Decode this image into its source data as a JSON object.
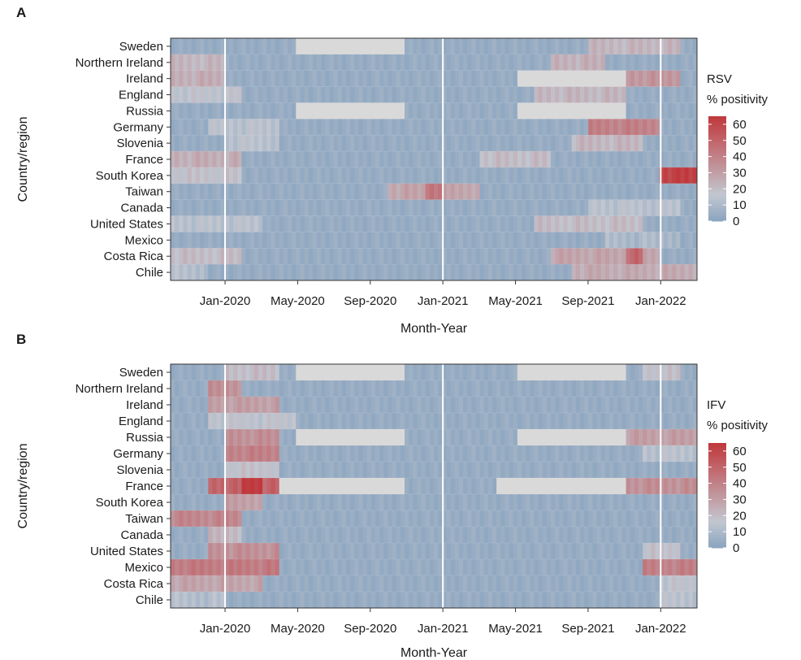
{
  "panels": [
    {
      "letter": "A",
      "legend_title": [
        "RSV",
        "% positivity"
      ]
    },
    {
      "letter": "B",
      "legend_title": [
        "IFV",
        "% positivity"
      ]
    }
  ],
  "colors": {
    "low": "#8aa4bf",
    "mid": "#c2c7d0",
    "high": "#c0383c",
    "na": "#d9d9d9",
    "divider": "#ffffff"
  },
  "chart_data": [
    {
      "type": "heatmap",
      "panel": "A",
      "title": "",
      "xlabel": "Month-Year",
      "ylabel": "Country/region",
      "legend_title": "RSV % positivity",
      "color_scale": [
        0,
        65
      ],
      "legend_ticks": [
        0,
        10,
        20,
        30,
        40,
        50,
        60
      ],
      "x_range": [
        "2019-10",
        "2022-02"
      ],
      "x_ticks": [
        "Jan-2020",
        "May-2020",
        "Sep-2020",
        "Jan-2021",
        "May-2021",
        "Sep-2021",
        "Jan-2022"
      ],
      "countries": [
        "Sweden",
        "Northern Ireland",
        "Ireland",
        "England",
        "Russia",
        "Germany",
        "Slovenia",
        "France",
        "South Korea",
        "Taiwan",
        "Canada",
        "United States",
        "Mexico",
        "Costa Rica",
        "Chile"
      ],
      "no_data_ranges": [
        {
          "country": "Sweden",
          "from": "2020-05",
          "to": "2020-10"
        },
        {
          "country": "Russia",
          "from": "2020-05",
          "to": "2020-10"
        },
        {
          "country": "Ireland",
          "from": "2021-05",
          "to": "2021-10"
        },
        {
          "country": "Russia",
          "from": "2021-05",
          "to": "2021-10"
        }
      ],
      "hotspots": [
        {
          "country": "Northern Ireland",
          "from": "2019-10",
          "to": "2019-12",
          "value": 22
        },
        {
          "country": "Ireland",
          "from": "2019-10",
          "to": "2019-12",
          "value": 25
        },
        {
          "country": "England",
          "from": "2019-10",
          "to": "2020-01",
          "value": 16
        },
        {
          "country": "Germany",
          "from": "2019-12",
          "to": "2020-03",
          "value": 14
        },
        {
          "country": "Slovenia",
          "from": "2020-01",
          "to": "2020-03",
          "value": 14
        },
        {
          "country": "France",
          "from": "2019-10",
          "to": "2020-01",
          "value": 25
        },
        {
          "country": "South Korea",
          "from": "2019-10",
          "to": "2020-01",
          "value": 18
        },
        {
          "country": "United States",
          "from": "2019-10",
          "to": "2020-02",
          "value": 14
        },
        {
          "country": "Costa Rica",
          "from": "2019-10",
          "to": "2020-01",
          "value": 20
        },
        {
          "country": "Chile",
          "from": "2019-10",
          "to": "2019-11",
          "value": 12
        },
        {
          "country": "Taiwan",
          "from": "2020-10",
          "to": "2021-02",
          "value": 28
        },
        {
          "country": "Taiwan",
          "from": "2020-12",
          "to": "2020-12",
          "value": 45
        },
        {
          "country": "Sweden",
          "from": "2021-09",
          "to": "2022-01",
          "value": 22
        },
        {
          "country": "Northern Ireland",
          "from": "2021-07",
          "to": "2021-09",
          "value": 24
        },
        {
          "country": "Ireland",
          "from": "2021-11",
          "to": "2022-01",
          "value": 33
        },
        {
          "country": "England",
          "from": "2021-06",
          "to": "2021-10",
          "value": 22
        },
        {
          "country": "Germany",
          "from": "2021-09",
          "to": "2021-12",
          "value": 40
        },
        {
          "country": "Slovenia",
          "from": "2021-08",
          "to": "2021-11",
          "value": 22
        },
        {
          "country": "France",
          "from": "2021-03",
          "to": "2021-06",
          "value": 20
        },
        {
          "country": "South Korea",
          "from": "2022-01",
          "to": "2022-02",
          "value": 62
        },
        {
          "country": "Canada",
          "from": "2021-09",
          "to": "2022-01",
          "value": 14
        },
        {
          "country": "United States",
          "from": "2021-06",
          "to": "2021-11",
          "value": 20
        },
        {
          "country": "Mexico",
          "from": "2021-10",
          "to": "2022-01",
          "value": 10
        },
        {
          "country": "Costa Rica",
          "from": "2021-07",
          "to": "2021-12",
          "value": 28
        },
        {
          "country": "Costa Rica",
          "from": "2021-11",
          "to": "2021-11",
          "value": 48
        },
        {
          "country": "Chile",
          "from": "2021-08",
          "to": "2022-02",
          "value": 26
        }
      ]
    },
    {
      "type": "heatmap",
      "panel": "B",
      "title": "",
      "xlabel": "Month-Year",
      "ylabel": "Country/region",
      "legend_title": "IFV % positivity",
      "color_scale": [
        0,
        65
      ],
      "legend_ticks": [
        0,
        10,
        20,
        30,
        40,
        50,
        60
      ],
      "x_range": [
        "2019-10",
        "2022-02"
      ],
      "x_ticks": [
        "Jan-2020",
        "May-2020",
        "Sep-2020",
        "Jan-2021",
        "May-2021",
        "Sep-2021",
        "Jan-2022"
      ],
      "countries": [
        "Sweden",
        "Northern Ireland",
        "Ireland",
        "England",
        "Russia",
        "Germany",
        "Slovenia",
        "France",
        "South Korea",
        "Taiwan",
        "Canada",
        "United States",
        "Mexico",
        "Costa Rica",
        "Chile"
      ],
      "no_data_ranges": [
        {
          "country": "Sweden",
          "from": "2020-05",
          "to": "2020-10"
        },
        {
          "country": "Russia",
          "from": "2020-05",
          "to": "2020-10"
        },
        {
          "country": "France",
          "from": "2020-04",
          "to": "2020-10"
        },
        {
          "country": "Sweden",
          "from": "2021-05",
          "to": "2021-10"
        },
        {
          "country": "Russia",
          "from": "2021-05",
          "to": "2021-10"
        },
        {
          "country": "France",
          "from": "2021-04",
          "to": "2021-10"
        }
      ],
      "hotspots": [
        {
          "country": "Sweden",
          "from": "2020-01",
          "to": "2020-03",
          "value": 20
        },
        {
          "country": "Northern Ireland",
          "from": "2019-12",
          "to": "2020-01",
          "value": 35
        },
        {
          "country": "Ireland",
          "from": "2019-12",
          "to": "2020-03",
          "value": 30
        },
        {
          "country": "England",
          "from": "2019-12",
          "to": "2020-04",
          "value": 16
        },
        {
          "country": "Russia",
          "from": "2020-01",
          "to": "2020-03",
          "value": 35
        },
        {
          "country": "Germany",
          "from": "2020-01",
          "to": "2020-03",
          "value": 40
        },
        {
          "country": "Slovenia",
          "from": "2020-01",
          "to": "2020-03",
          "value": 18
        },
        {
          "country": "France",
          "from": "2019-12",
          "to": "2020-03",
          "value": 50
        },
        {
          "country": "France",
          "from": "2020-02",
          "to": "2020-02",
          "value": 65
        },
        {
          "country": "South Korea",
          "from": "2020-01",
          "to": "2020-02",
          "value": 30
        },
        {
          "country": "Taiwan",
          "from": "2019-10",
          "to": "2020-01",
          "value": 38
        },
        {
          "country": "Canada",
          "from": "2019-12",
          "to": "2020-01",
          "value": 22
        },
        {
          "country": "United States",
          "from": "2019-12",
          "to": "2020-03",
          "value": 35
        },
        {
          "country": "Mexico",
          "from": "2019-10",
          "to": "2020-03",
          "value": 42
        },
        {
          "country": "Costa Rica",
          "from": "2019-10",
          "to": "2020-02",
          "value": 28
        },
        {
          "country": "Chile",
          "from": "2019-10",
          "to": "2019-12",
          "value": 12
        },
        {
          "country": "Sweden",
          "from": "2021-12",
          "to": "2022-01",
          "value": 18
        },
        {
          "country": "Russia",
          "from": "2021-11",
          "to": "2022-02",
          "value": 30
        },
        {
          "country": "Germany",
          "from": "2021-12",
          "to": "2022-02",
          "value": 14
        },
        {
          "country": "France",
          "from": "2021-11",
          "to": "2022-02",
          "value": 35
        },
        {
          "country": "United States",
          "from": "2021-12",
          "to": "2022-01",
          "value": 18
        },
        {
          "country": "Mexico",
          "from": "2021-12",
          "to": "2022-02",
          "value": 40
        },
        {
          "country": "Costa Rica",
          "from": "2022-01",
          "to": "2022-02",
          "value": 16
        },
        {
          "country": "Chile",
          "from": "2022-01",
          "to": "2022-02",
          "value": 14
        }
      ]
    }
  ]
}
